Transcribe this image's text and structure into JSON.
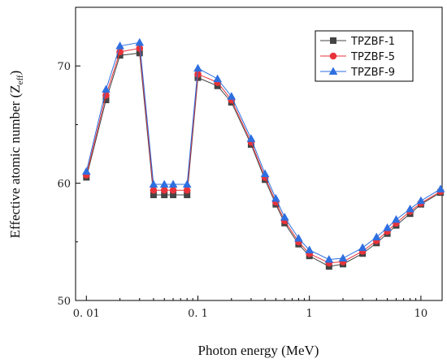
{
  "chart_data": {
    "type": "line",
    "xlabel": "Photon energy (MeV)",
    "ylabel_main": "Effective atomic number (Z",
    "ylabel_sub": "eff",
    "ylabel_close": ")",
    "xscale": "log",
    "xlim": [
      0.008,
      15.5
    ],
    "ylim": [
      50,
      75
    ],
    "xticks": [
      0.01,
      0.1,
      1,
      10
    ],
    "xtick_labels": [
      "0. 01",
      "0. 1",
      "1",
      "10"
    ],
    "yticks": [
      50,
      60,
      70
    ],
    "ytick_labels": [
      "50",
      "60",
      "70"
    ],
    "legend_position": "top-right",
    "x": [
      0.01,
      0.015,
      0.02,
      0.03,
      0.04,
      0.05,
      0.06,
      0.08,
      0.1,
      0.15,
      0.2,
      0.3,
      0.4,
      0.5,
      0.6,
      0.8,
      1,
      1.5,
      2,
      3,
      4,
      5,
      6,
      8,
      10,
      15
    ],
    "series": [
      {
        "name": "TPZBF-1",
        "color": "#444444",
        "marker": "square",
        "values": [
          60.5,
          67.1,
          70.9,
          71.1,
          59.0,
          59.0,
          59.0,
          59.0,
          69.0,
          68.3,
          66.9,
          63.3,
          60.3,
          58.2,
          56.6,
          54.8,
          53.8,
          52.9,
          53.1,
          54.0,
          54.9,
          55.7,
          56.4,
          57.4,
          58.2,
          59.2
        ]
      },
      {
        "name": "TPZBF-5",
        "color": "#e8333a",
        "marker": "circle",
        "values": [
          60.7,
          67.5,
          71.2,
          71.5,
          59.4,
          59.4,
          59.4,
          59.4,
          69.3,
          68.6,
          67.1,
          63.5,
          60.5,
          58.4,
          56.8,
          55.0,
          54.0,
          53.2,
          53.3,
          54.2,
          55.1,
          55.9,
          56.6,
          57.6,
          58.3,
          59.3
        ]
      },
      {
        "name": "TPZBF-9",
        "color": "#2e6fe0",
        "marker": "triangle",
        "values": [
          61.0,
          68.0,
          71.7,
          72.0,
          59.9,
          59.9,
          59.9,
          59.9,
          69.8,
          68.9,
          67.4,
          63.8,
          60.8,
          58.7,
          57.1,
          55.3,
          54.3,
          53.5,
          53.6,
          54.5,
          55.4,
          56.2,
          56.9,
          57.8,
          58.5,
          59.5
        ]
      }
    ]
  }
}
